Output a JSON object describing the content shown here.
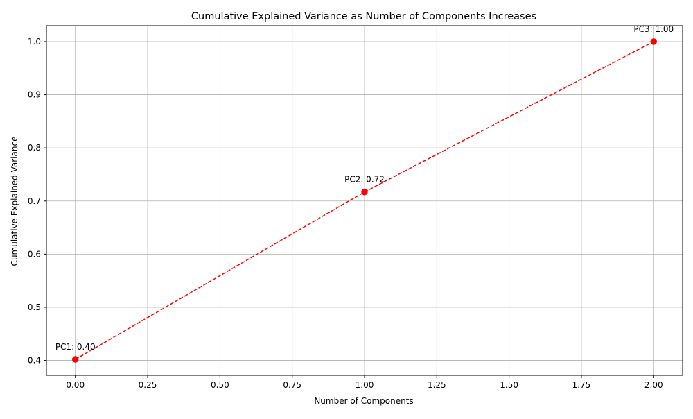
{
  "chart_data": {
    "type": "line",
    "title": "Cumulative Explained Variance as Number of Components Increases",
    "xlabel": "Number of Components",
    "ylabel": "Cumulative Explained Variance",
    "xlim": [
      -0.1,
      2.1
    ],
    "ylim": [
      0.372,
      1.03
    ],
    "xticks": [
      0.0,
      0.25,
      0.5,
      0.75,
      1.0,
      1.25,
      1.5,
      1.75,
      2.0
    ],
    "xtick_labels": [
      "0.00",
      "0.25",
      "0.50",
      "0.75",
      "1.00",
      "1.25",
      "1.50",
      "1.75",
      "2.00"
    ],
    "yticks": [
      0.4,
      0.5,
      0.6,
      0.7,
      0.8,
      0.9,
      1.0
    ],
    "ytick_labels": [
      "0.4",
      "0.5",
      "0.6",
      "0.7",
      "0.8",
      "0.9",
      "1.0"
    ],
    "grid": true,
    "series": [
      {
        "x": [
          0,
          1,
          2
        ],
        "y": [
          0.402,
          0.717,
          1.0
        ],
        "color": "#ff0000",
        "linestyle": "dashed",
        "marker": "circle"
      }
    ],
    "annotations": [
      {
        "text": "PC1: 0.40",
        "x": 0,
        "y": 0.402
      },
      {
        "text": "PC2: 0.72",
        "x": 1,
        "y": 0.717
      },
      {
        "text": "PC3: 1.00",
        "x": 2,
        "y": 1.0
      }
    ]
  }
}
